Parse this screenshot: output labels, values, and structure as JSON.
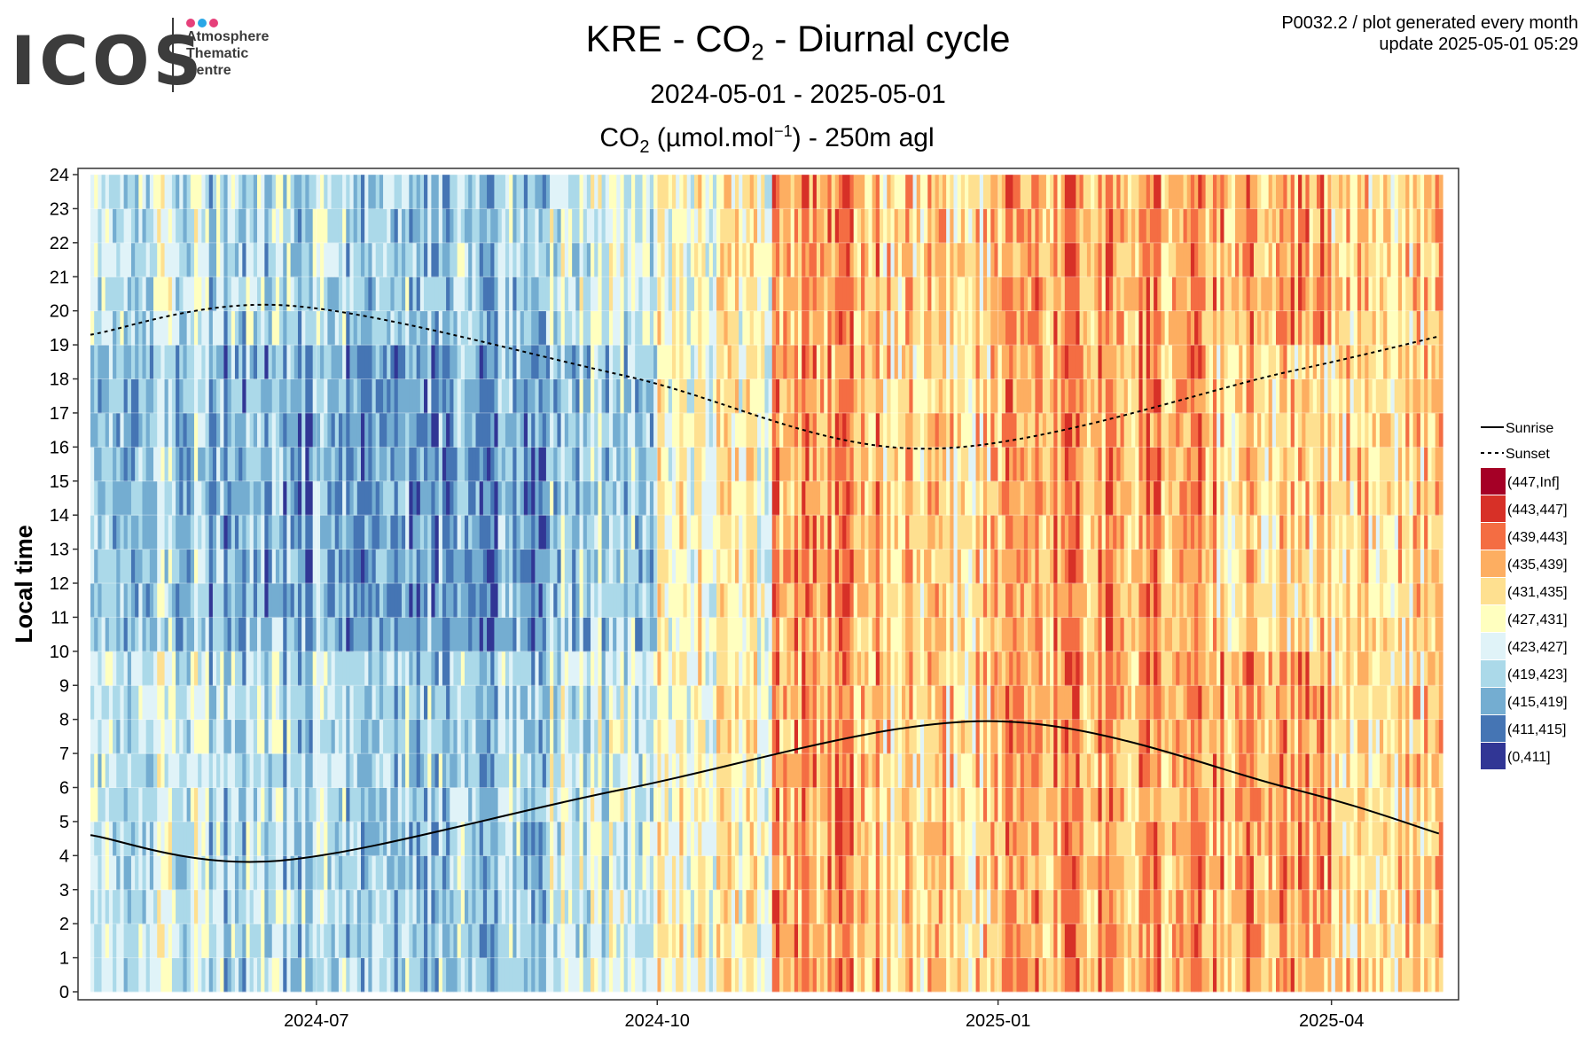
{
  "logo": {
    "wordmark": "ICOS",
    "line1": "Atmosphere",
    "line2": "Thematic",
    "line3": "Centre",
    "dot_colors": [
      "#e6407a",
      "#2aa7e6",
      "#e6407a"
    ]
  },
  "header": {
    "title_pre": "KRE - CO",
    "title_sub": "2",
    "title_post": " - Diurnal cycle",
    "date_range": "2024-05-01 - 2025-05-01",
    "subtitle_pre": "CO",
    "subtitle_sub": "2",
    "subtitle_mid": " (µmol.mol",
    "subtitle_sup": "−1",
    "subtitle_post": ") - 250m agl",
    "meta_line1": "P0032.2 / plot generated every month",
    "meta_line2": "update  2025-05-01 05:29"
  },
  "chart_data": {
    "type": "heatmap",
    "title": "KRE - CO2 - Diurnal cycle",
    "ylabel": "Local time",
    "xlabel": "",
    "x_range": [
      "2024-05-01",
      "2025-05-01"
    ],
    "x_ticks": [
      "2024-07",
      "2024-10",
      "2025-01",
      "2025-04"
    ],
    "ylim": [
      0,
      24
    ],
    "y_ticks": [
      0,
      1,
      2,
      3,
      4,
      5,
      6,
      7,
      8,
      9,
      10,
      11,
      12,
      13,
      14,
      15,
      16,
      17,
      18,
      19,
      20,
      21,
      22,
      23,
      24
    ],
    "grid": true,
    "legend_position": "right",
    "bins": [
      {
        "label": "(447,Inf]",
        "color": "#a50026"
      },
      {
        "label": "(443,447]",
        "color": "#d73027"
      },
      {
        "label": "(439,443]",
        "color": "#f46d43"
      },
      {
        "label": "(435,439]",
        "color": "#fdae61"
      },
      {
        "label": "(431,435]",
        "color": "#fee090"
      },
      {
        "label": "(427,431]",
        "color": "#ffffbf"
      },
      {
        "label": "(423,427]",
        "color": "#e0f3f8"
      },
      {
        "label": "(419,423]",
        "color": "#abd9e9"
      },
      {
        "label": "(415,419]",
        "color": "#74add1"
      },
      {
        "label": "(411,415]",
        "color": "#4575b4"
      },
      {
        "label": "(0,411]",
        "color": "#313695"
      }
    ],
    "lines": [
      {
        "name": "Sunrise",
        "style": "solid",
        "points": [
          [
            "2024-05-01",
            4.6
          ],
          [
            "2024-06-21",
            3.85
          ],
          [
            "2024-09-22",
            5.95
          ],
          [
            "2024-12-29",
            7.95
          ],
          [
            "2025-03-20",
            6.0
          ],
          [
            "2025-04-30",
            4.65
          ]
        ]
      },
      {
        "name": "Sunset",
        "style": "dashed",
        "points": [
          [
            "2024-05-01",
            19.3
          ],
          [
            "2024-06-24",
            20.15
          ],
          [
            "2024-09-22",
            18.1
          ],
          [
            "2024-12-13",
            15.95
          ],
          [
            "2025-03-20",
            18.2
          ],
          [
            "2025-04-30",
            19.25
          ]
        ]
      }
    ],
    "monthly_bin_profile": [
      {
        "month": "2024-05",
        "night_bin": 6,
        "day_bin": 7
      },
      {
        "month": "2024-06",
        "night_bin": 7,
        "day_bin": 8
      },
      {
        "month": "2024-07",
        "night_bin": 7,
        "day_bin": 8
      },
      {
        "month": "2024-08",
        "night_bin": 7,
        "day_bin": 8
      },
      {
        "month": "2024-09",
        "night_bin": 6,
        "day_bin": 7
      },
      {
        "month": "2024-10",
        "night_bin": 5,
        "day_bin": 5
      },
      {
        "month": "2024-11",
        "night_bin": 3,
        "day_bin": 3
      },
      {
        "month": "2024-12",
        "night_bin": 4,
        "day_bin": 4
      },
      {
        "month": "2025-01",
        "night_bin": 3,
        "day_bin": 3
      },
      {
        "month": "2025-02",
        "night_bin": 3,
        "day_bin": 3
      },
      {
        "month": "2025-03",
        "night_bin": 3,
        "day_bin": 4
      },
      {
        "month": "2025-04",
        "night_bin": 4,
        "day_bin": 4
      }
    ]
  }
}
